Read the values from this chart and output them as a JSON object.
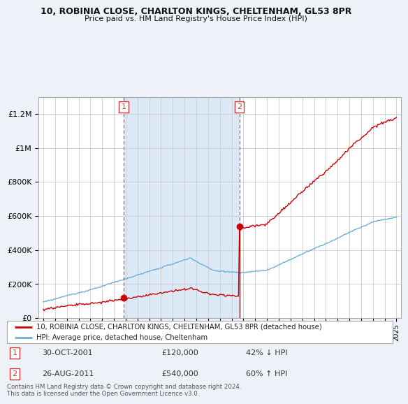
{
  "title1": "10, ROBINIA CLOSE, CHARLTON KINGS, CHELTENHAM, GL53 8PR",
  "title2": "Price paid vs. HM Land Registry's House Price Index (HPI)",
  "ylabel_ticks": [
    0,
    200000,
    400000,
    600000,
    800000,
    1000000,
    1200000
  ],
  "ylabel_labels": [
    "£0",
    "£200K",
    "£400K",
    "£600K",
    "£800K",
    "£1M",
    "£1.2M"
  ],
  "ylim": [
    0,
    1300000
  ],
  "xlim_start": 1994.6,
  "xlim_end": 2025.4,
  "sale1_date": 2001.83,
  "sale1_price": 120000,
  "sale2_date": 2011.65,
  "sale2_price": 540000,
  "sale1_text": "30-OCT-2001",
  "sale1_price_str": "£120,000",
  "sale1_hpi_str": "42% ↓ HPI",
  "sale2_text": "26-AUG-2011",
  "sale2_price_str": "£540,000",
  "sale2_hpi_str": "60% ↑ HPI",
  "line_red_color": "#cc0000",
  "line_blue_color": "#6baed6",
  "shade_color": "#dce9f7",
  "vline_color": "#cc3333",
  "legend_label1": "10, ROBINIA CLOSE, CHARLTON KINGS, CHELTENHAM, GL53 8PR (detached house)",
  "legend_label2": "HPI: Average price, detached house, Cheltenham",
  "footnote": "Contains HM Land Registry data © Crown copyright and database right 2024.\nThis data is licensed under the Open Government Licence v3.0.",
  "background_color": "#eef2f8",
  "plot_bg_color": "#ffffff",
  "grid_color": "#cccccc"
}
